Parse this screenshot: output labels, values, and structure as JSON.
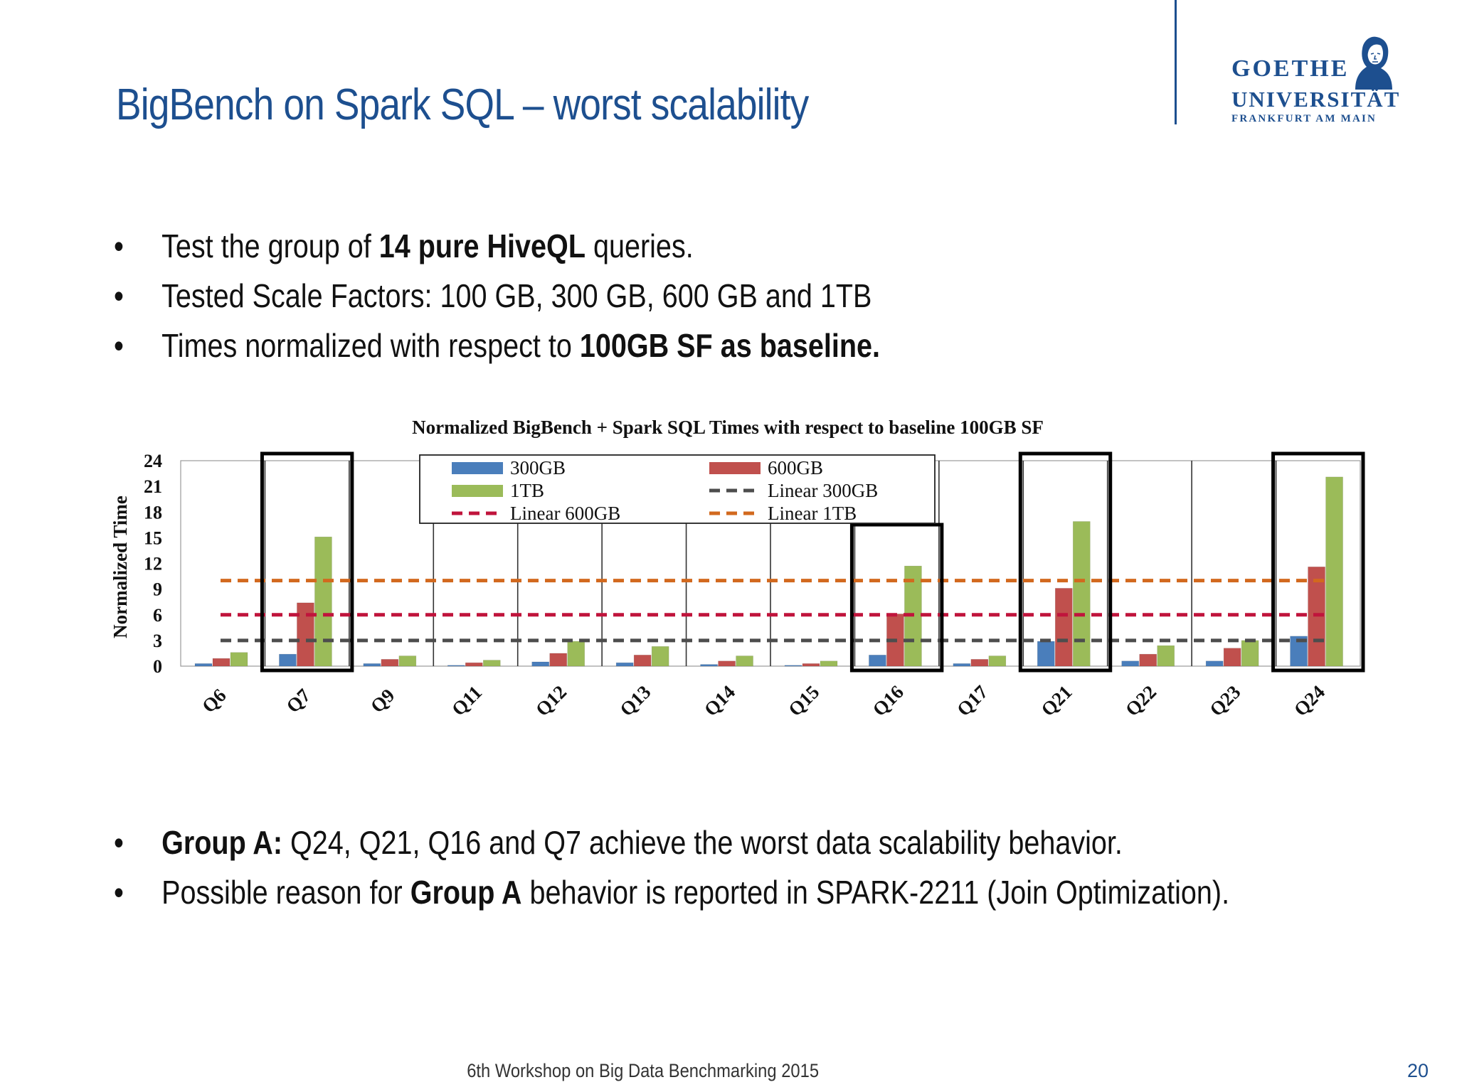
{
  "slide": {
    "title": "BigBench on Spark SQL – worst scalability",
    "logo": {
      "line1": "GOETHE",
      "line2": "UNIVERSITÄT",
      "line3": "FRANKFURT AM MAIN"
    },
    "bullets_top": [
      {
        "pre": "Test the group of ",
        "bold": "14 pure HiveQL",
        "post": " queries."
      },
      {
        "pre": "Tested Scale Factors: 100 GB, 300 GB, 600 GB and 1TB",
        "bold": "",
        "post": ""
      },
      {
        "pre": "Times normalized with respect to ",
        "bold": "100GB SF as baseline.",
        "post": ""
      }
    ],
    "bullets_bottom": [
      {
        "pre": "",
        "bold": "Group A:",
        "post": " Q24, Q21, Q16 and Q7 achieve the worst data scalability behavior."
      },
      {
        "pre": "Possible reason for ",
        "bold": "Group A",
        "post": " behavior is reported in SPARK-2211 (Join Optimization)."
      }
    ],
    "footer": "6th Workshop on Big Data Benchmarking 2015",
    "page_number": "20"
  },
  "colors": {
    "title": "#1d4f8f",
    "s300": "#4a7ebb",
    "s600": "#c0504d",
    "s1tb": "#9bbb59",
    "linear300": "#4d4d4d",
    "linear600": "#c0143c",
    "linear1tb": "#d2691e"
  },
  "chart_data": {
    "type": "bar",
    "title": "Normalized BigBench + Spark SQL Times with respect to baseline 100GB SF",
    "ylabel": "Normalized Time",
    "xlabel": "",
    "ylim": [
      0,
      24
    ],
    "yticks": [
      0,
      3,
      6,
      9,
      12,
      15,
      18,
      21,
      24
    ],
    "categories": [
      "Q6",
      "Q7",
      "Q9",
      "Q11",
      "Q12",
      "Q13",
      "Q14",
      "Q15",
      "Q16",
      "Q17",
      "Q21",
      "Q22",
      "Q23",
      "Q24"
    ],
    "series": [
      {
        "name": "300GB",
        "values": [
          0.3,
          1.4,
          0.3,
          0.1,
          0.5,
          0.4,
          0.2,
          0.1,
          1.3,
          0.3,
          2.9,
          0.6,
          0.6,
          3.5
        ]
      },
      {
        "name": "600GB",
        "values": [
          0.9,
          7.4,
          0.8,
          0.4,
          1.5,
          1.3,
          0.6,
          0.3,
          6.1,
          0.8,
          9.1,
          1.4,
          2.1,
          11.6
        ]
      },
      {
        "name": "1TB",
        "values": [
          1.6,
          15.1,
          1.2,
          0.7,
          2.9,
          2.3,
          1.2,
          0.6,
          11.7,
          1.2,
          16.9,
          2.4,
          3.0,
          22.1
        ]
      }
    ],
    "reference_lines": [
      {
        "name": "Linear 300GB",
        "value": 3
      },
      {
        "name": "Linear 600GB",
        "value": 6
      },
      {
        "name": "Linear 1TB",
        "value": 10
      }
    ],
    "highlighted_categories": [
      "Q7",
      "Q16",
      "Q21",
      "Q24"
    ],
    "legend": {
      "position": "top-center",
      "entries": [
        "300GB",
        "600GB",
        "1TB",
        "Linear 300GB",
        "Linear 600GB",
        "Linear 1TB"
      ]
    },
    "grid": "vertical category separators"
  }
}
